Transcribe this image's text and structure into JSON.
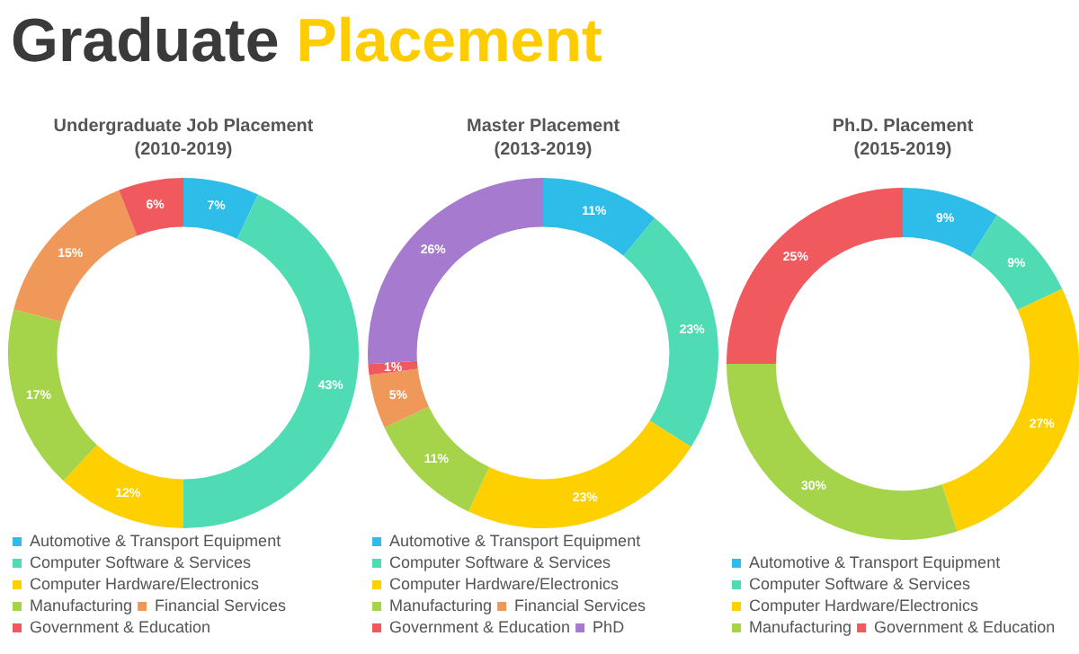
{
  "chart_data": [
    {
      "type": "other",
      "title": "Graduate Placement"
    },
    {
      "type": "donut",
      "title": "Undergraduate Job Placement",
      "subtitle": "(2010-2019)",
      "categories": [
        "Automotive & Transport Equipment",
        "Computer Software & Services",
        "Computer Hardware/Electronics",
        "Manufacturing",
        "Financial Services",
        "Government & Education"
      ],
      "values": [
        7,
        43,
        12,
        17,
        15,
        6
      ],
      "value_labels": [
        "7%",
        "43%",
        "12%",
        "17%",
        "15%",
        "6%"
      ],
      "colors": [
        "#2dbde8",
        "#4fdcb4",
        "#ffd000",
        "#a5d44a",
        "#f0985a",
        "#f0595e"
      ],
      "legend": "bottom"
    },
    {
      "type": "donut",
      "title": "Master Placement",
      "subtitle": "(2013-2019)",
      "categories": [
        "Automotive & Transport Equipment",
        "Computer Software & Services",
        "Computer Hardware/Electronics",
        "Manufacturing",
        "Financial Services",
        "Government & Education",
        "PhD"
      ],
      "values": [
        11,
        23,
        23,
        11,
        5,
        1,
        26
      ],
      "value_labels": [
        "11%",
        "23%",
        "23%",
        "11%",
        "5%",
        "1%",
        "26%"
      ],
      "colors": [
        "#2dbde8",
        "#4fdcb4",
        "#ffd000",
        "#a5d44a",
        "#f0985a",
        "#f0595e",
        "#a67bcf"
      ],
      "legend": "bottom"
    },
    {
      "type": "donut",
      "title": "Ph.D. Placement",
      "subtitle": "(2015-2019)",
      "categories": [
        "Automotive & Transport Equipment",
        "Computer Software & Services",
        "Computer Hardware/Electronics",
        "Manufacturing",
        "Government & Education"
      ],
      "values": [
        9,
        9,
        27,
        30,
        25
      ],
      "value_labels": [
        "9%",
        "9%",
        "27%",
        "30%",
        "25%"
      ],
      "colors": [
        "#2dbde8",
        "#4fdcb4",
        "#ffd000",
        "#a5d44a",
        "#f0595e"
      ],
      "legend": "bottom"
    }
  ]
}
